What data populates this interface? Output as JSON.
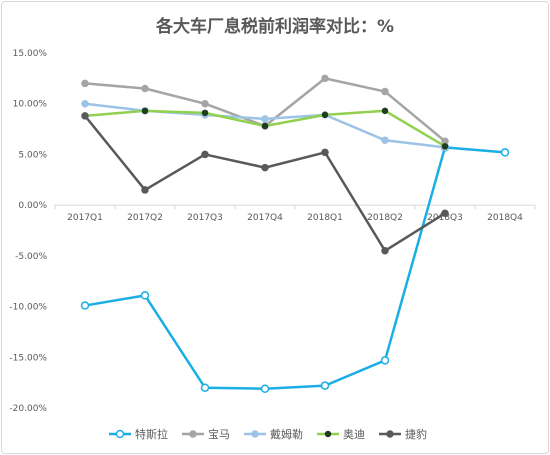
{
  "chart_data": {
    "type": "line",
    "title": "各大车厂息税前利润率对比：%",
    "categories": [
      "2017Q1",
      "2017Q2",
      "2017Q3",
      "2017Q4",
      "2018Q1",
      "2018Q2",
      "2018Q3",
      "2018Q4"
    ],
    "y_ticks": [
      "15.00%",
      "10.00%",
      "5.00%",
      "0.00%",
      "-5.00%",
      "-10.00%",
      "-15.00%",
      "-20.00%"
    ],
    "ylim": [
      -20,
      15
    ],
    "grid": false,
    "legend_position": "bottom",
    "series": [
      {
        "name": "特斯拉",
        "color": "#1aaee5",
        "marker": "hollow-circle",
        "values": [
          -9.9,
          -8.9,
          -18.0,
          -18.1,
          -17.8,
          -15.3,
          5.7,
          5.2
        ]
      },
      {
        "name": "宝马",
        "color": "#a5a5a5",
        "marker": "circle",
        "values": [
          12.0,
          11.5,
          10.0,
          7.8,
          12.5,
          11.2,
          6.3,
          null
        ]
      },
      {
        "name": "戴姆勒",
        "color": "#9dc3e6",
        "marker": "circle",
        "values": [
          10.0,
          9.3,
          8.9,
          8.5,
          8.9,
          6.4,
          5.7,
          null
        ]
      },
      {
        "name": "奥迪",
        "color": "#92d050",
        "marker": "circle-dark",
        "values": [
          8.8,
          9.3,
          9.1,
          7.8,
          8.9,
          9.3,
          5.8,
          null
        ]
      },
      {
        "name": "捷豹",
        "color": "#595959",
        "marker": "circle",
        "values": [
          8.8,
          1.5,
          5.0,
          3.7,
          5.2,
          -4.5,
          -0.8,
          null
        ]
      }
    ]
  }
}
